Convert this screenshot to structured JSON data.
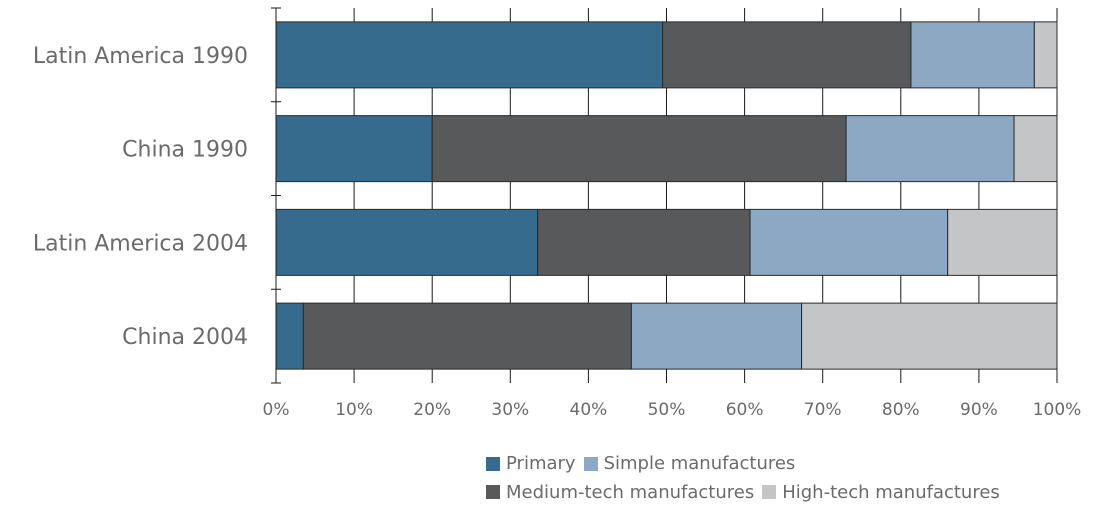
{
  "chart_data": {
    "type": "bar",
    "orientation": "horizontal",
    "stacked": "percent",
    "categories": [
      "Latin America 1990",
      "China 1990",
      "Latin America 2004",
      "China 2004"
    ],
    "series": [
      {
        "name": "Primary",
        "color": "#376b8e",
        "values": [
          49.5,
          20.0,
          33.5,
          3.5
        ]
      },
      {
        "name": "Medium-tech manufactures",
        "color": "#58595b",
        "values": [
          31.8,
          53.0,
          27.2,
          42.0
        ]
      },
      {
        "name": "Simple manufactures",
        "color": "#8da8c3",
        "values": [
          15.8,
          21.5,
          25.3,
          21.8
        ]
      },
      {
        "name": "High-tech manufactures",
        "color": "#c4c5c7",
        "values": [
          2.9,
          5.5,
          14.0,
          32.7
        ]
      }
    ],
    "xticks": [
      "0%",
      "10%",
      "20%",
      "30%",
      "40%",
      "50%",
      "60%",
      "70%",
      "80%",
      "90%",
      "100%"
    ],
    "xlim": [
      0,
      100
    ],
    "grid": "vertical",
    "legend_position": "bottom-right",
    "legend_rows": [
      [
        "Primary",
        "Simple manufactures"
      ],
      [
        "Medium-tech manufactures",
        "High-tech manufactures"
      ]
    ]
  }
}
